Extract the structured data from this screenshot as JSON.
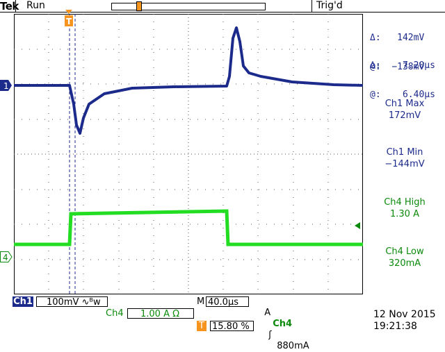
{
  "brand": "Tek",
  "status": "Run",
  "trigger_status": "Trig'd",
  "markers": {
    "trigger": "T",
    "ch1": "1",
    "ch4": "4"
  },
  "cursors": {
    "v_delta": "142mV",
    "v_at": "−138mV",
    "t_delta": "7.20µs",
    "t_at": "6.40µs",
    "delta_symbol": "Δ:",
    "at_symbol": "@:"
  },
  "measurements": [
    {
      "label": "Ch1 Max",
      "value": "172mV",
      "color": "#1c2a8c"
    },
    {
      "label": "Ch1 Min",
      "value": "−144mV",
      "color": "#1c2a8c"
    },
    {
      "label": "Ch4 High",
      "value": "1.30 A",
      "color": "#0a8a0a"
    },
    {
      "label": "Ch4 Low",
      "value": "320mA",
      "color": "#0a8a0a"
    }
  ],
  "bottom": {
    "ch1_label": "Ch1",
    "ch1_scale": "100mV ∿ᴮw",
    "m_label": "M",
    "timebase": "40.0µs",
    "trig_mode": "A",
    "trig_source": "Ch4",
    "trig_slope": "ʃ",
    "trig_level": "880mA",
    "ch4_label": "Ch4",
    "ch4_scale": "1.00 A Ω",
    "t_label": "T",
    "trigger_position": "15.80 %",
    "date": "12 Nov 2015",
    "time": "19:21:38"
  },
  "colors": {
    "ch1": "#1c2a8c",
    "ch4": "#22dd22",
    "accent": "#f7941d"
  }
}
